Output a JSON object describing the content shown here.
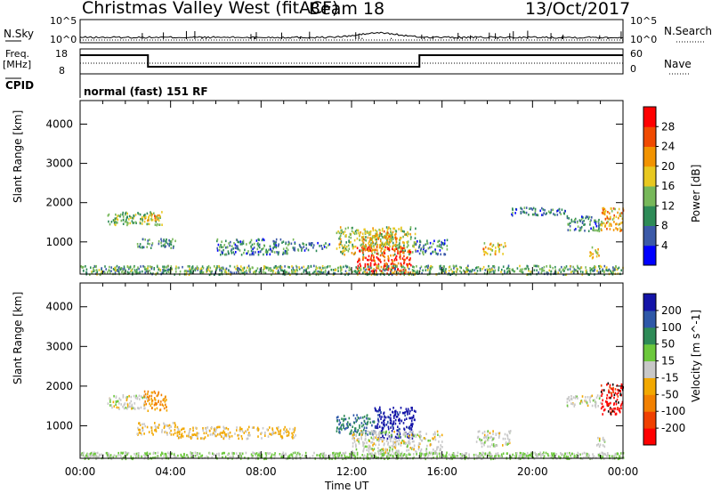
{
  "header": {
    "title": "Christmas Valley West (fitACF)",
    "beam": "Beam 18",
    "date": "13/Oct/2017"
  },
  "strip_labels": {
    "nsky": "N.Sky",
    "nsky_ticks": [
      "10^5",
      "10^0"
    ],
    "nsearch": "N.Search",
    "nsearch_ticks": [
      "10^5",
      "10^0"
    ],
    "freq": "Freq.",
    "freq_unit": "[MHz]",
    "freq_ticks": [
      "18",
      "8"
    ],
    "nave": "Nave",
    "nave_ticks": [
      "60",
      "0"
    ],
    "cpid": "CPID",
    "cpid_value": "normal (fast) 151 RF"
  },
  "colors": {
    "power": [
      "#0000ff",
      "#3c5aa8",
      "#2e8b57",
      "#77b85a",
      "#e8c820",
      "#f29300",
      "#f04a00",
      "#ff0000"
    ],
    "velocity": [
      "#1414a8",
      "#2e58a8",
      "#2e8b57",
      "#6cc83c",
      "#c8c8c8",
      "#f2a800",
      "#f28000",
      "#f04000",
      "#ff0000"
    ]
  },
  "chart_data": [
    {
      "type": "heatmap",
      "name": "power",
      "xlabel": "Time UT",
      "ylabel": "Slant Range [km]",
      "x_ticks": [
        "00:00",
        "04:00",
        "08:00",
        "12:00",
        "16:00",
        "20:00",
        "00:00"
      ],
      "xlim_hours": [
        0,
        24
      ],
      "y_ticks": [
        1000,
        2000,
        3000,
        4000
      ],
      "ylim_km": [
        180,
        4600
      ],
      "colorbar_label": "Power [dB]",
      "colorbar_ticks": [
        "28",
        "24",
        "20",
        "16",
        "12",
        "8",
        "4"
      ],
      "crange": [
        0,
        32
      ],
      "scatter_regions": [
        {
          "t": [
            1.2,
            3.6
          ],
          "r": [
            1450,
            1800
          ],
          "v": 14
        },
        {
          "t": [
            2.8,
            3.5
          ],
          "r": [
            1550,
            1750
          ],
          "v": 19
        },
        {
          "t": [
            2.5,
            4.2
          ],
          "r": [
            850,
            1100
          ],
          "v": 10
        },
        {
          "t": [
            6.0,
            9.5
          ],
          "r": [
            700,
            1100
          ],
          "v": 9
        },
        {
          "t": [
            9.5,
            11.0
          ],
          "r": [
            800,
            1000
          ],
          "v": 8
        },
        {
          "t": [
            11.3,
            14.8
          ],
          "r": [
            700,
            1400
          ],
          "v": 16
        },
        {
          "t": [
            12.2,
            14.6
          ],
          "r": [
            200,
            900
          ],
          "v": 27
        },
        {
          "t": [
            12.5,
            14.0
          ],
          "r": [
            900,
            1300
          ],
          "v": 20
        },
        {
          "t": [
            14.8,
            16.2
          ],
          "r": [
            700,
            1100
          ],
          "v": 8
        },
        {
          "t": [
            17.8,
            18.8
          ],
          "r": [
            700,
            1000
          ],
          "v": 20
        },
        {
          "t": [
            19.0,
            21.5
          ],
          "r": [
            1700,
            1900
          ],
          "v": 8
        },
        {
          "t": [
            21.5,
            23.0
          ],
          "r": [
            1300,
            1700
          ],
          "v": 9
        },
        {
          "t": [
            23.0,
            24.0
          ],
          "r": [
            1300,
            1900
          ],
          "v": 20
        },
        {
          "t": [
            22.5,
            23.0
          ],
          "r": [
            600,
            900
          ],
          "v": 18
        },
        {
          "t": [
            0.0,
            24.0
          ],
          "r": [
            190,
            420
          ],
          "v": 12
        }
      ]
    },
    {
      "type": "heatmap",
      "name": "velocity",
      "xlabel": "Time UT",
      "ylabel": "Slant Range [km]",
      "x_ticks": [
        "00:00",
        "04:00",
        "08:00",
        "12:00",
        "16:00",
        "20:00",
        "00:00"
      ],
      "xlim_hours": [
        0,
        24
      ],
      "y_ticks": [
        1000,
        2000,
        3000,
        4000
      ],
      "ylim_km": [
        180,
        4600
      ],
      "colorbar_label": "Velocity [m s^-1]",
      "colorbar_ticks": [
        "200",
        "100",
        "50",
        "15",
        "-15",
        "-50",
        "-100",
        "-200"
      ],
      "crange": [
        -250,
        250
      ],
      "scatter_regions": [
        {
          "t": [
            1.2,
            3.0
          ],
          "r": [
            1450,
            1800
          ],
          "v": 0
        },
        {
          "t": [
            2.8,
            3.8
          ],
          "r": [
            1400,
            1900
          ],
          "v": -90
        },
        {
          "t": [
            2.5,
            4.2
          ],
          "r": [
            800,
            1100
          ],
          "v": -40
        },
        {
          "t": [
            4.2,
            9.5
          ],
          "r": [
            700,
            1000
          ],
          "v": -40
        },
        {
          "t": [
            11.3,
            13.0
          ],
          "r": [
            800,
            1300
          ],
          "v": 130
        },
        {
          "t": [
            13.0,
            14.8
          ],
          "r": [
            700,
            1500
          ],
          "v": 220
        },
        {
          "t": [
            12.0,
            16.0
          ],
          "r": [
            300,
            900
          ],
          "v": 0
        },
        {
          "t": [
            17.5,
            19.0
          ],
          "r": [
            500,
            900
          ],
          "v": 0
        },
        {
          "t": [
            21.5,
            23.0
          ],
          "r": [
            1500,
            1800
          ],
          "v": 0
        },
        {
          "t": [
            23.0,
            24.0
          ],
          "r": [
            1300,
            2100
          ],
          "v": -220
        },
        {
          "t": [
            22.8,
            23.2
          ],
          "r": [
            500,
            800
          ],
          "v": 0
        },
        {
          "t": [
            0.0,
            24.0
          ],
          "r": [
            190,
            350
          ],
          "v": 30
        }
      ]
    }
  ]
}
